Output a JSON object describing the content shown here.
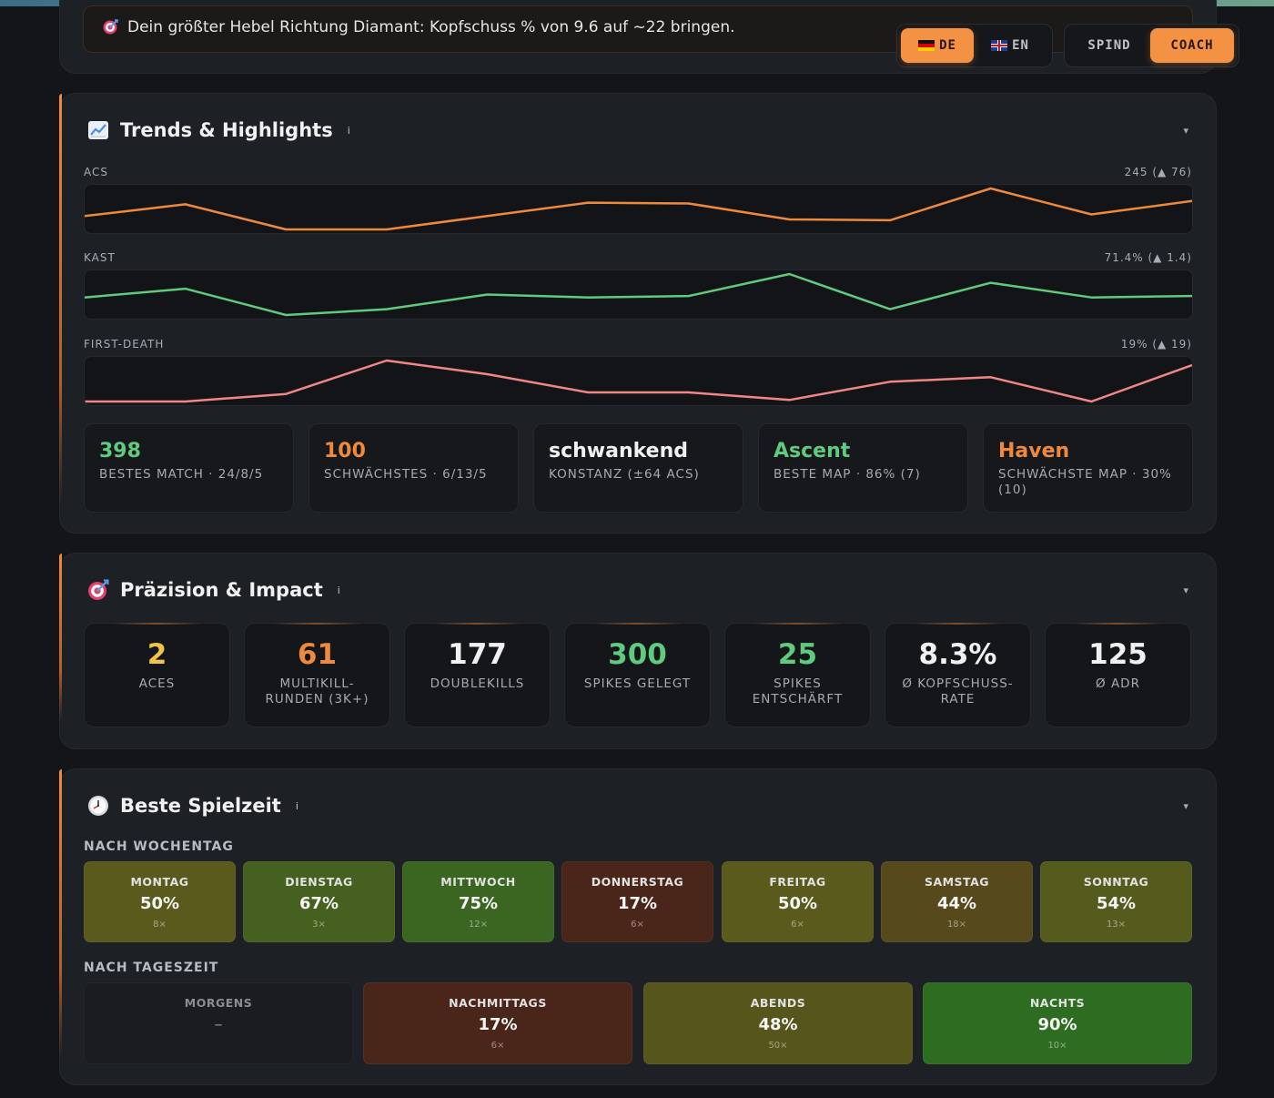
{
  "banner": {
    "icon": "target-icon",
    "text": "Dein größter Hebel Richtung Diamant: Kopfschuss % von 9.6 auf ~22 bringen."
  },
  "lang": {
    "de": "DE",
    "en": "EN",
    "active": "DE"
  },
  "view": {
    "spind": "SPIND",
    "coach": "COACH",
    "active": "COACH"
  },
  "colors": {
    "accent": "#f39242",
    "orange": "#ef8a3c",
    "green": "#5fcb7e",
    "red": "#f08787",
    "yellow": "#f2c443"
  },
  "trends": {
    "title": "Trends & Highlights",
    "icon": "chart-up-icon",
    "info": "i",
    "chev": "▾",
    "sparks": [
      {
        "label": "ACS",
        "summary": "245 (▲ 76)",
        "color": "#ef8a3c",
        "values": [
          238,
          252,
          222,
          222,
          238,
          254,
          253,
          234,
          233,
          271,
          240,
          256
        ]
      },
      {
        "label": "KAST",
        "summary": "71.4% (▲ 1.4)",
        "color": "#5fcb7e",
        "values": [
          72,
          75,
          66,
          68,
          73,
          72,
          72.5,
          80,
          68,
          77,
          72,
          72.5
        ]
      },
      {
        "label": "FIRST-DEATH",
        "summary": "19% (▲ 19)",
        "color": "#f08787",
        "values": [
          0,
          0,
          5,
          27,
          18,
          6,
          6,
          1,
          13,
          16,
          0,
          24
        ]
      }
    ],
    "highlights": [
      {
        "value": "398",
        "sub": "BESTES MATCH · 24/8/5",
        "color": "#5fcb7e"
      },
      {
        "value": "100",
        "sub": "SCHWÄCHSTES · 6/13/5",
        "color": "#ef8a3c"
      },
      {
        "value": "schwankend",
        "sub": "KONSTANZ (±64 ACS)",
        "color": "#f1f1f1"
      },
      {
        "value": "Ascent",
        "sub": "BESTE MAP · 86% (7)",
        "color": "#5fcb7e"
      },
      {
        "value": "Haven",
        "sub": "SCHWÄCHSTE MAP · 30% (10)",
        "color": "#ef8a3c"
      }
    ]
  },
  "precision": {
    "title": "Präzision & Impact",
    "icon": "target-icon",
    "info": "i",
    "chev": "▾",
    "stats": [
      {
        "value": "2",
        "label": "ACES",
        "color": "#f2c443"
      },
      {
        "value": "61",
        "label": "MULTIKILL-RUNDEN (3K+)",
        "color": "#ef8a3c"
      },
      {
        "value": "177",
        "label": "DOUBLEKILLS",
        "color": "#f1f1f1"
      },
      {
        "value": "300",
        "label": "SPIKES GELEGT",
        "color": "#5fcb7e"
      },
      {
        "value": "25",
        "label": "SPIKES ENTSCHÄRFT",
        "color": "#5fcb7e"
      },
      {
        "value": "8.3%",
        "label": "Ø KOPFSCHUSS-RATE",
        "color": "#f1f1f1"
      },
      {
        "value": "125",
        "label": "Ø ADR",
        "color": "#f1f1f1"
      }
    ]
  },
  "playtime": {
    "title": "Beste Spielzeit",
    "icon": "clock-icon",
    "info": "i",
    "chev": "▾",
    "weekday_label": "NACH WOCHENTAG",
    "daytime_label": "NACH TAGESZEIT",
    "weekdays": [
      {
        "name": "MONTAG",
        "pct": "50%",
        "count": "8×",
        "color": "#5a5a1d"
      },
      {
        "name": "DIENSTAG",
        "pct": "67%",
        "count": "3×",
        "color": "#46601f"
      },
      {
        "name": "MITTWOCH",
        "pct": "75%",
        "count": "12×",
        "color": "#3b6622"
      },
      {
        "name": "DONNERSTAG",
        "pct": "17%",
        "count": "6×",
        "color": "#4a2519"
      },
      {
        "name": "FREITAG",
        "pct": "50%",
        "count": "6×",
        "color": "#5a5a1d"
      },
      {
        "name": "SAMSTAG",
        "pct": "44%",
        "count": "18×",
        "color": "#56491c"
      },
      {
        "name": "SONNTAG",
        "pct": "54%",
        "count": "13×",
        "color": "#555b1d"
      }
    ],
    "daytimes": [
      {
        "name": "MORGENS",
        "pct": "–",
        "count": "",
        "color": "#1a1c20"
      },
      {
        "name": "NACHMITTAGS",
        "pct": "17%",
        "count": "6×",
        "color": "#4a2519"
      },
      {
        "name": "ABENDS",
        "pct": "48%",
        "count": "50×",
        "color": "#56561c"
      },
      {
        "name": "NACHTS",
        "pct": "90%",
        "count": "10×",
        "color": "#2e6c22"
      }
    ]
  }
}
